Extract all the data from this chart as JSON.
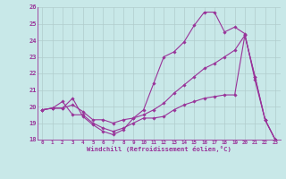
{
  "title": "",
  "xlabel": "Windchill (Refroidissement éolien,°C)",
  "background_color": "#c8e8e8",
  "line_color": "#993399",
  "grid_color": "#b0cccc",
  "xlim": [
    -0.5,
    23.5
  ],
  "ylim": [
    18,
    26
  ],
  "yticks": [
    18,
    19,
    20,
    21,
    22,
    23,
    24,
    25,
    26
  ],
  "xticks": [
    0,
    1,
    2,
    3,
    4,
    5,
    6,
    7,
    8,
    9,
    10,
    11,
    12,
    13,
    14,
    15,
    16,
    17,
    18,
    19,
    20,
    21,
    22,
    23
  ],
  "series": [
    {
      "x": [
        0,
        1,
        2,
        3,
        4,
        5,
        6,
        7,
        8,
        9,
        10,
        11,
        12,
        13,
        14,
        15,
        16,
        17,
        18,
        19,
        20,
        21,
        22,
        23
      ],
      "y": [
        19.8,
        19.9,
        19.9,
        20.5,
        19.4,
        18.9,
        18.5,
        18.3,
        18.6,
        19.3,
        19.8,
        21.4,
        23.0,
        23.3,
        23.9,
        24.9,
        25.7,
        25.7,
        24.5,
        24.8,
        24.4,
        21.6,
        19.2,
        18.0
      ]
    },
    {
      "x": [
        0,
        1,
        2,
        3,
        4,
        5,
        6,
        7,
        8,
        9,
        10,
        11,
        12,
        13,
        14,
        15,
        16,
        17,
        18,
        19,
        20,
        21,
        22,
        23
      ],
      "y": [
        19.8,
        19.9,
        20.3,
        19.5,
        19.5,
        19.0,
        18.7,
        18.5,
        18.7,
        19.0,
        19.3,
        19.3,
        19.4,
        19.8,
        20.1,
        20.3,
        20.5,
        20.6,
        20.7,
        20.7,
        24.3,
        21.8,
        19.2,
        18.0
      ]
    },
    {
      "x": [
        0,
        1,
        2,
        3,
        4,
        5,
        6,
        7,
        8,
        9,
        10,
        11,
        12,
        13,
        14,
        15,
        16,
        17,
        18,
        19,
        20,
        21,
        22,
        23
      ],
      "y": [
        19.8,
        19.9,
        19.9,
        20.1,
        19.7,
        19.2,
        19.2,
        19.0,
        19.2,
        19.3,
        19.5,
        19.8,
        20.2,
        20.8,
        21.3,
        21.8,
        22.3,
        22.6,
        23.0,
        23.4,
        24.3,
        21.8,
        19.2,
        18.0
      ]
    }
  ]
}
